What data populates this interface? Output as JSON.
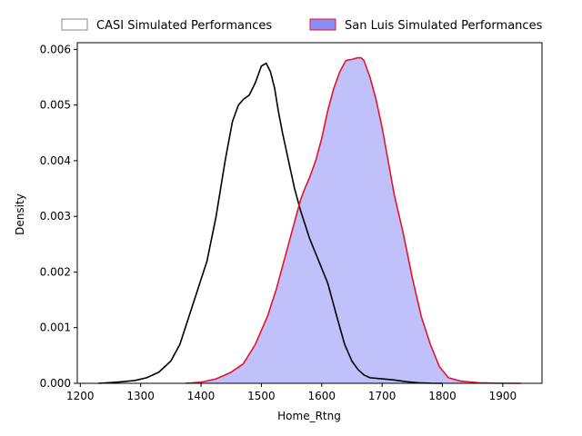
{
  "chart_data": {
    "type": "area",
    "title": "",
    "xlabel": "Home_Rtng",
    "ylabel": "Density",
    "xlim": [
      1195,
      1965
    ],
    "ylim": [
      0,
      0.00612
    ],
    "xticks": [
      1200,
      1300,
      1400,
      1500,
      1600,
      1700,
      1800,
      1900
    ],
    "yticks": [
      0.0,
      0.001,
      0.002,
      0.003,
      0.004,
      0.005,
      0.006
    ],
    "ytick_labels": [
      "0.000",
      "0.001",
      "0.002",
      "0.003",
      "0.004",
      "0.005",
      "0.006"
    ],
    "legend_position": "top-center (above plot)",
    "series": [
      {
        "name": "CASI Simulated Performances",
        "line_color": "#000000",
        "fill": "none",
        "x": [
          1230,
          1260,
          1290,
          1310,
          1330,
          1350,
          1365,
          1380,
          1395,
          1410,
          1425,
          1440,
          1452,
          1462,
          1470,
          1480,
          1490,
          1500,
          1508,
          1515,
          1522,
          1528,
          1535,
          1545,
          1555,
          1565,
          1580,
          1595,
          1610,
          1625,
          1638,
          1650,
          1660,
          1670,
          1680,
          1700,
          1720,
          1740,
          1760,
          1780,
          1800
        ],
        "y": [
          0.0,
          2e-05,
          5e-05,
          0.0001,
          0.0002,
          0.0004,
          0.0007,
          0.0012,
          0.0017,
          0.0022,
          0.003,
          0.004,
          0.0047,
          0.005,
          0.0051,
          0.00518,
          0.0054,
          0.0057,
          0.00575,
          0.0056,
          0.0053,
          0.0049,
          0.0045,
          0.004,
          0.0035,
          0.0031,
          0.0026,
          0.0022,
          0.0018,
          0.0012,
          0.0007,
          0.0004,
          0.00025,
          0.00015,
          0.0001,
          8e-05,
          6e-05,
          3e-05,
          1e-05,
          2e-06,
          0.0
        ]
      },
      {
        "name": "San Luis Simulated Performances",
        "line_color": "#e8132a",
        "fill": "#8d8df7",
        "x": [
          1375,
          1400,
          1425,
          1450,
          1470,
          1490,
          1510,
          1525,
          1540,
          1555,
          1565,
          1572,
          1580,
          1590,
          1600,
          1610,
          1620,
          1630,
          1640,
          1650,
          1660,
          1665,
          1670,
          1680,
          1690,
          1700,
          1710,
          1720,
          1735,
          1750,
          1765,
          1780,
          1795,
          1810,
          1830,
          1860,
          1890,
          1930
        ],
        "y": [
          0.0,
          2e-05,
          8e-05,
          0.0002,
          0.00035,
          0.0007,
          0.0012,
          0.0017,
          0.0023,
          0.0029,
          0.0033,
          0.0035,
          0.0037,
          0.004,
          0.0044,
          0.0049,
          0.0053,
          0.0056,
          0.0058,
          0.00582,
          0.00585,
          0.00585,
          0.0058,
          0.0055,
          0.0051,
          0.0046,
          0.004,
          0.0034,
          0.0027,
          0.0019,
          0.0012,
          0.0007,
          0.0003,
          0.0001,
          4e-05,
          1e-05,
          2e-06,
          0.0
        ]
      }
    ]
  }
}
